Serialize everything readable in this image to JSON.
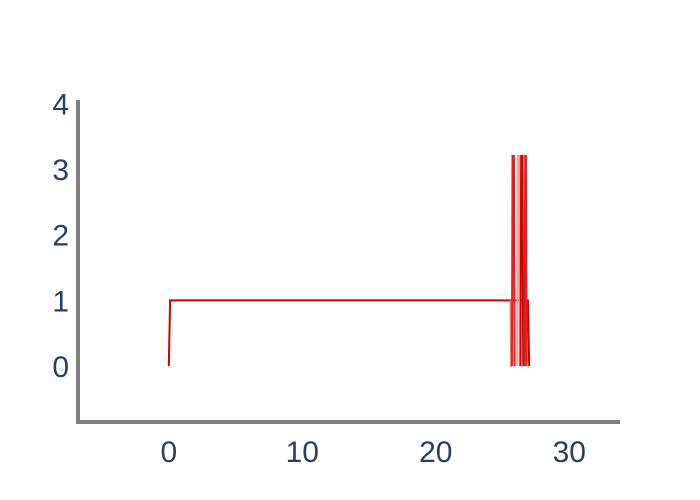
{
  "chart_data": {
    "type": "line",
    "xlim": [
      -6.8,
      33.8
    ],
    "ylim": [
      -0.85,
      4.05
    ],
    "xticks": [
      0,
      10,
      20,
      30
    ],
    "yticks": [
      0,
      1,
      2,
      3,
      4
    ],
    "xtick_labels": [
      "0",
      "10",
      "20",
      "30"
    ],
    "ytick_labels": [
      "0",
      "1",
      "2",
      "3",
      "4"
    ],
    "grid": false,
    "axis_color": "#808080",
    "series": [
      {
        "color": "#cc0000",
        "points": [
          [
            0,
            0
          ],
          [
            0.1,
            1
          ],
          [
            25.6,
            1
          ],
          [
            26.6,
            1
          ],
          [
            26.9,
            1
          ],
          [
            27.0,
            0
          ]
        ]
      },
      {
        "color": "#f08080",
        "points": [
          [
            25.6,
            1
          ],
          [
            25.65,
            0
          ],
          [
            25.7,
            0
          ]
        ]
      },
      {
        "color": "#e02020",
        "points": [
          [
            25.7,
            0
          ],
          [
            25.75,
            3.2
          ],
          [
            25.85,
            3.2
          ],
          [
            25.9,
            0
          ]
        ]
      },
      {
        "color": "#f4a0a0",
        "points": [
          [
            26.1,
            0
          ],
          [
            26.15,
            3.2
          ],
          [
            26.25,
            3.2
          ],
          [
            26.3,
            0
          ]
        ]
      },
      {
        "color": "#cc0000",
        "points": [
          [
            26.35,
            0
          ],
          [
            26.4,
            3.2
          ],
          [
            26.5,
            3.2
          ],
          [
            26.55,
            0
          ]
        ]
      },
      {
        "color": "#e02020",
        "points": [
          [
            26.65,
            0
          ],
          [
            26.7,
            3.2
          ],
          [
            26.75,
            3.2
          ],
          [
            26.8,
            0
          ]
        ]
      }
    ]
  }
}
